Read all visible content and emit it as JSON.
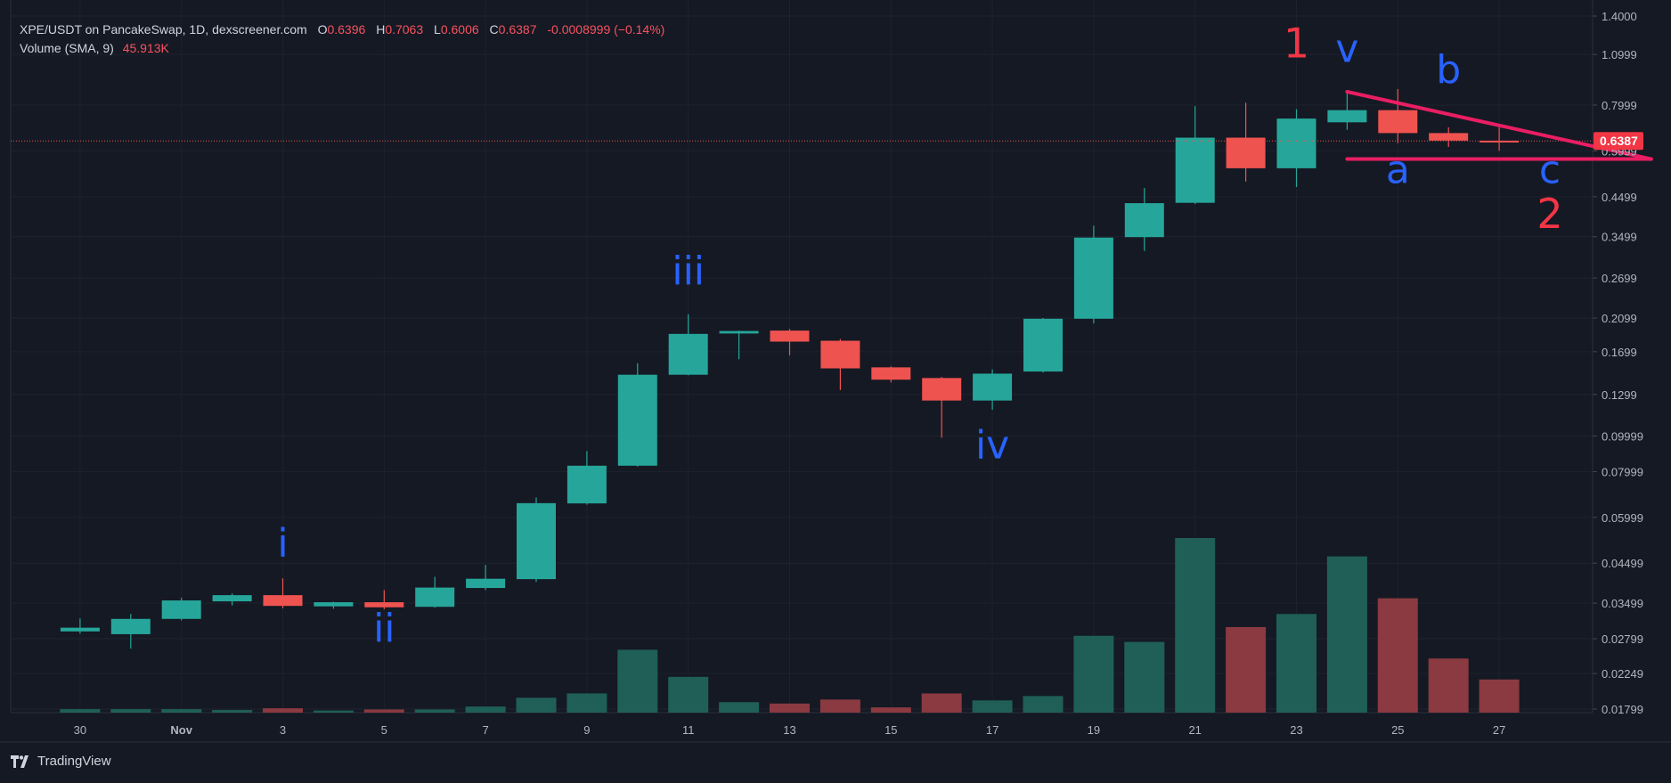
{
  "legend": {
    "pair": "XPE/USDT on PancakeSwap, 1D, dexscreener.com",
    "o_label": "O",
    "o": "0.6396",
    "h_label": "H",
    "h": "0.7063",
    "l_label": "L",
    "l": "0.6006",
    "c_label": "C",
    "c": "0.6387",
    "change": "-0.0008999 (−0.14%)",
    "volume_label": "Volume (SMA, 9)",
    "volume_value": "45.913K"
  },
  "price_tag": "0.6387",
  "branding": "TradingView",
  "colors": {
    "up": "#26a69a",
    "down": "#ef5350",
    "vol_up": "#1f5f58",
    "vol_down": "#8a3a40",
    "background": "#151924",
    "wave_blue": "#2962ff",
    "wave_red": "#f23645",
    "trendline": "#e91e63"
  },
  "chart_data": {
    "type": "candlestick",
    "y_scale": "log",
    "ylim": [
      0.01799,
      1.4
    ],
    "y_ticks": [
      "1.4000",
      "1.0999",
      "0.7999",
      "0.5999",
      "0.4499",
      "0.3499",
      "0.2699",
      "0.2099",
      "0.1699",
      "0.1299",
      "0.09999",
      "0.07999",
      "0.05999",
      "0.04499",
      "0.03499",
      "0.02799",
      "0.02249",
      "0.01799"
    ],
    "x_ticks": [
      "30",
      "Nov",
      "3",
      "5",
      "7",
      "9",
      "11",
      "13",
      "15",
      "17",
      "19",
      "21",
      "23",
      "25",
      "27"
    ],
    "candles": [
      {
        "date": "Oct 30",
        "open": 0.0293,
        "high": 0.0318,
        "low": 0.0289,
        "close": 0.03
      },
      {
        "date": "Oct 31",
        "open": 0.0288,
        "high": 0.0327,
        "low": 0.0263,
        "close": 0.0317
      },
      {
        "date": "Nov 1",
        "open": 0.0317,
        "high": 0.0362,
        "low": 0.0314,
        "close": 0.0356
      },
      {
        "date": "Nov 2",
        "open": 0.0354,
        "high": 0.0372,
        "low": 0.0345,
        "close": 0.0368
      },
      {
        "date": "Nov 3",
        "open": 0.0368,
        "high": 0.0409,
        "low": 0.0339,
        "close": 0.0344
      },
      {
        "date": "Nov 4",
        "open": 0.0343,
        "high": 0.0353,
        "low": 0.0338,
        "close": 0.0352
      },
      {
        "date": "Nov 5",
        "open": 0.0352,
        "high": 0.038,
        "low": 0.0337,
        "close": 0.0341
      },
      {
        "date": "Nov 6",
        "open": 0.0342,
        "high": 0.0413,
        "low": 0.034,
        "close": 0.0386
      },
      {
        "date": "Nov 7",
        "open": 0.0385,
        "high": 0.0445,
        "low": 0.038,
        "close": 0.0408
      },
      {
        "date": "Nov 8",
        "open": 0.0407,
        "high": 0.068,
        "low": 0.04,
        "close": 0.0656
      },
      {
        "date": "Nov 9",
        "open": 0.0655,
        "high": 0.091,
        "low": 0.065,
        "close": 0.083
      },
      {
        "date": "Nov 10",
        "open": 0.083,
        "high": 0.158,
        "low": 0.0825,
        "close": 0.147
      },
      {
        "date": "Nov 11",
        "open": 0.147,
        "high": 0.215,
        "low": 0.1465,
        "close": 0.19
      },
      {
        "date": "Nov 12",
        "open": 0.1905,
        "high": 0.194,
        "low": 0.162,
        "close": 0.1935
      },
      {
        "date": "Nov 13",
        "open": 0.194,
        "high": 0.196,
        "low": 0.166,
        "close": 0.181
      },
      {
        "date": "Nov 14",
        "open": 0.182,
        "high": 0.184,
        "low": 0.1335,
        "close": 0.153
      },
      {
        "date": "Nov 15",
        "open": 0.154,
        "high": 0.155,
        "low": 0.14,
        "close": 0.1425
      },
      {
        "date": "Nov 16",
        "open": 0.144,
        "high": 0.145,
        "low": 0.099,
        "close": 0.125
      },
      {
        "date": "Nov 17",
        "open": 0.125,
        "high": 0.152,
        "low": 0.118,
        "close": 0.148
      },
      {
        "date": "Nov 18",
        "open": 0.15,
        "high": 0.21,
        "low": 0.149,
        "close": 0.209
      },
      {
        "date": "Nov 19",
        "open": 0.209,
        "high": 0.375,
        "low": 0.203,
        "close": 0.348
      },
      {
        "date": "Nov 20",
        "open": 0.349,
        "high": 0.475,
        "low": 0.32,
        "close": 0.432
      },
      {
        "date": "Nov 21",
        "open": 0.433,
        "high": 0.795,
        "low": 0.43,
        "close": 0.652
      },
      {
        "date": "Nov 22",
        "open": 0.652,
        "high": 0.812,
        "low": 0.495,
        "close": 0.538
      },
      {
        "date": "Nov 23",
        "open": 0.538,
        "high": 0.78,
        "low": 0.478,
        "close": 0.735
      },
      {
        "date": "Nov 24",
        "open": 0.718,
        "high": 0.86,
        "low": 0.685,
        "close": 0.775
      },
      {
        "date": "Nov 25",
        "open": 0.775,
        "high": 0.885,
        "low": 0.63,
        "close": 0.671
      },
      {
        "date": "Nov 26",
        "open": 0.671,
        "high": 0.696,
        "low": 0.615,
        "close": 0.64
      },
      {
        "date": "Nov 27",
        "open": 0.6396,
        "high": 0.7063,
        "low": 0.6006,
        "close": 0.6387
      }
    ],
    "volume_relative": [
      0.02,
      0.02,
      0.02,
      0.015,
      0.025,
      0.012,
      0.018,
      0.018,
      0.035,
      0.085,
      0.11,
      0.36,
      0.205,
      0.06,
      0.052,
      0.075,
      0.03,
      0.11,
      0.07,
      0.095,
      0.44,
      0.405,
      1.0,
      0.49,
      0.565,
      0.895,
      0.655,
      0.31,
      0.19
    ],
    "annotations": [
      {
        "text": "i",
        "color": "blue",
        "date": "Nov 3",
        "price": 0.047
      },
      {
        "text": "ii",
        "color": "blue",
        "date": "Nov 5",
        "price": 0.0275
      },
      {
        "text": "iii",
        "color": "blue",
        "date": "Nov 11",
        "price": 0.26
      },
      {
        "text": "iv",
        "color": "blue",
        "date": "Nov 17",
        "price": 0.087
      },
      {
        "text": "v",
        "color": "blue",
        "date": "Nov 24",
        "price": 1.05
      },
      {
        "text": "b",
        "color": "blue",
        "date": "Nov 26",
        "price": 0.92
      },
      {
        "text": "a",
        "color": "blue",
        "date": "Nov 25",
        "price": 0.49
      },
      {
        "text": "c",
        "color": "blue",
        "date": "Nov 28",
        "price": 0.49
      },
      {
        "text": "1",
        "color": "red",
        "date": "Nov 23",
        "price": 1.08
      },
      {
        "text": "2",
        "color": "red",
        "date": "Nov 28",
        "price": 0.37
      }
    ],
    "trendlines": [
      {
        "from": {
          "date": "Nov 24",
          "price": 0.87
        },
        "to": {
          "date": "Nov 30",
          "price": 0.57
        }
      },
      {
        "from": {
          "date": "Nov 24",
          "price": 0.57
        },
        "to": {
          "date": "Nov 30",
          "price": 0.57
        }
      }
    ],
    "last_price": 0.6387,
    "grid": true
  }
}
